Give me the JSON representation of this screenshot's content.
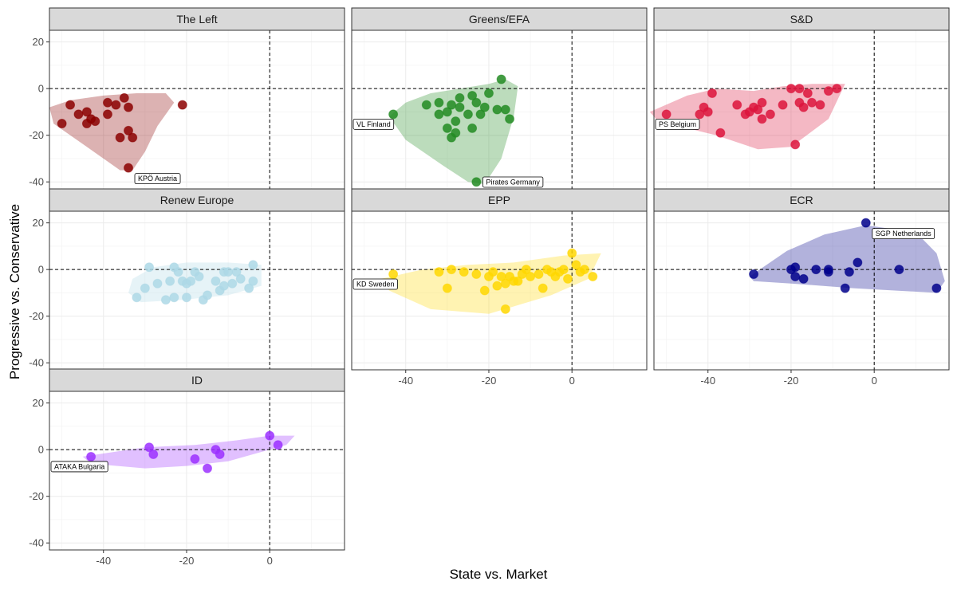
{
  "chart_data": {
    "type": "scatter",
    "title": "",
    "xlabel": "State vs. Market",
    "ylabel": "Progressive vs. Conservative",
    "xlim": [
      -53,
      18
    ],
    "ylim": [
      -43,
      25
    ],
    "x_ticks": [
      -40,
      -20,
      0
    ],
    "y_ticks": [
      -40,
      -20,
      0,
      20
    ],
    "reference_lines": {
      "x": 0,
      "y": 0
    },
    "grid": true,
    "panels": [
      {
        "name": "The Left",
        "color": "#8B0000",
        "hull": [
          [
            -53,
            -8
          ],
          [
            -48,
            -5
          ],
          [
            -40,
            -3
          ],
          [
            -32,
            -2
          ],
          [
            -25,
            -2
          ],
          [
            -23,
            -6
          ],
          [
            -27,
            -16
          ],
          [
            -30,
            -27
          ],
          [
            -33,
            -35
          ],
          [
            -36,
            -35
          ],
          [
            -44,
            -25
          ],
          [
            -52,
            -15
          ]
        ],
        "points": [
          [
            -50,
            -15
          ],
          [
            -48,
            -7
          ],
          [
            -46,
            -11
          ],
          [
            -44,
            -10
          ],
          [
            -44,
            -15
          ],
          [
            -43,
            -13
          ],
          [
            -42,
            -14
          ],
          [
            -39,
            -6
          ],
          [
            -39,
            -11
          ],
          [
            -37,
            -7
          ],
          [
            -36,
            -21
          ],
          [
            -35,
            -4
          ],
          [
            -34,
            -8
          ],
          [
            -34,
            -18
          ],
          [
            -33,
            -21
          ],
          [
            -34,
            -34
          ],
          [
            -21,
            -7
          ]
        ],
        "labels": [
          {
            "text": "KPÖ Austria",
            "x": -34,
            "y": -34,
            "anchor": "right"
          }
        ]
      },
      {
        "name": "Greens/EFA",
        "color": "#228B22",
        "hull": [
          [
            -44,
            -12
          ],
          [
            -40,
            -6
          ],
          [
            -34,
            -2
          ],
          [
            -27,
            0
          ],
          [
            -20,
            2
          ],
          [
            -16,
            4
          ],
          [
            -13,
            1
          ],
          [
            -14,
            -12
          ],
          [
            -17,
            -30
          ],
          [
            -21,
            -41
          ],
          [
            -25,
            -40
          ],
          [
            -31,
            -33
          ],
          [
            -40,
            -22
          ]
        ],
        "points": [
          [
            -43,
            -11
          ],
          [
            -35,
            -7
          ],
          [
            -32,
            -6
          ],
          [
            -32,
            -11
          ],
          [
            -30,
            -10
          ],
          [
            -29,
            -7
          ],
          [
            -28,
            -14
          ],
          [
            -28,
            -19
          ],
          [
            -27,
            -8
          ],
          [
            -25,
            -11
          ],
          [
            -24,
            -17
          ],
          [
            -23,
            -6
          ],
          [
            -23,
            -40
          ],
          [
            -21,
            -8
          ],
          [
            -20,
            -2
          ],
          [
            -18,
            -9
          ],
          [
            -17,
            4
          ],
          [
            -16,
            -9
          ],
          [
            -15,
            -13
          ],
          [
            -27,
            -4
          ],
          [
            -24,
            -3
          ],
          [
            -30,
            -17
          ],
          [
            -29,
            -21
          ],
          [
            -22,
            -11
          ]
        ],
        "labels": [
          {
            "text": "VL Finland",
            "x": -43,
            "y": -11,
            "anchor": "left"
          },
          {
            "text": "Pirates Germany",
            "x": -23,
            "y": -40,
            "anchor": "right"
          }
        ]
      },
      {
        "name": "S&D",
        "color": "#DC143C",
        "hull": [
          [
            -54,
            -10
          ],
          [
            -45,
            -3
          ],
          [
            -38,
            0
          ],
          [
            -29,
            -1
          ],
          [
            -22,
            1
          ],
          [
            -15,
            2
          ],
          [
            -7,
            2
          ],
          [
            -11,
            -13
          ],
          [
            -20,
            -25
          ],
          [
            -28,
            -26
          ],
          [
            -38,
            -20
          ],
          [
            -52,
            -14
          ]
        ],
        "points": [
          [
            -50,
            -11
          ],
          [
            -45,
            -15
          ],
          [
            -42,
            -11
          ],
          [
            -41,
            -8
          ],
          [
            -40,
            -10
          ],
          [
            -39,
            -2
          ],
          [
            -37,
            -19
          ],
          [
            -33,
            -7
          ],
          [
            -31,
            -11
          ],
          [
            -30,
            -10
          ],
          [
            -29,
            -8
          ],
          [
            -27,
            -6
          ],
          [
            -27,
            -13
          ],
          [
            -25,
            -11
          ],
          [
            -22,
            -7
          ],
          [
            -20,
            0
          ],
          [
            -19,
            -24
          ],
          [
            -18,
            0
          ],
          [
            -18,
            -6
          ],
          [
            -16,
            -2
          ],
          [
            -15,
            -6
          ],
          [
            -13,
            -7
          ],
          [
            -11,
            -1
          ],
          [
            -9,
            0
          ],
          [
            -17,
            -8
          ],
          [
            -28,
            -9
          ]
        ],
        "labels": [
          {
            "text": "PS Belgium",
            "x": -50,
            "y": -11,
            "anchor": "left"
          }
        ]
      },
      {
        "name": "Renew Europe",
        "color": "#ADD8E6",
        "hull": [
          [
            -33,
            -4
          ],
          [
            -28,
            1
          ],
          [
            -20,
            3
          ],
          [
            -10,
            3
          ],
          [
            -2,
            2
          ],
          [
            -2,
            -7
          ],
          [
            -10,
            -11
          ],
          [
            -21,
            -13
          ],
          [
            -31,
            -14
          ],
          [
            -34,
            -10
          ]
        ],
        "points": [
          [
            -32,
            -12
          ],
          [
            -30,
            -8
          ],
          [
            -29,
            1
          ],
          [
            -27,
            -6
          ],
          [
            -25,
            -13
          ],
          [
            -24,
            -5
          ],
          [
            -23,
            -12
          ],
          [
            -23,
            1
          ],
          [
            -22,
            -1
          ],
          [
            -21,
            -5
          ],
          [
            -20,
            -12
          ],
          [
            -20,
            -6
          ],
          [
            -19,
            -5
          ],
          [
            -18,
            -1
          ],
          [
            -17,
            -3
          ],
          [
            -16,
            -13
          ],
          [
            -15,
            -11
          ],
          [
            -13,
            -5
          ],
          [
            -12,
            -9
          ],
          [
            -11,
            -1
          ],
          [
            -11,
            -7
          ],
          [
            -10,
            -1
          ],
          [
            -9,
            -6
          ],
          [
            -8,
            -1
          ],
          [
            -7,
            -4
          ],
          [
            -5,
            -8
          ],
          [
            -4,
            2
          ],
          [
            -4,
            -5
          ]
        ],
        "labels": []
      },
      {
        "name": "EPP",
        "color": "#FFD700",
        "hull": [
          [
            -46,
            -4
          ],
          [
            -36,
            0
          ],
          [
            -25,
            2
          ],
          [
            -14,
            3
          ],
          [
            -2,
            6
          ],
          [
            7,
            7
          ],
          [
            4,
            -4
          ],
          [
            -5,
            -11
          ],
          [
            -20,
            -19
          ],
          [
            -34,
            -17
          ],
          [
            -44,
            -9
          ]
        ],
        "points": [
          [
            -43,
            -2
          ],
          [
            -32,
            -1
          ],
          [
            -29,
            0
          ],
          [
            -26,
            -1
          ],
          [
            -23,
            -2
          ],
          [
            -20,
            -3
          ],
          [
            -18,
            -7
          ],
          [
            -17,
            -3
          ],
          [
            -16,
            -6
          ],
          [
            -15,
            -3
          ],
          [
            -14,
            -5
          ],
          [
            -13,
            -5
          ],
          [
            -12,
            -2
          ],
          [
            -11,
            0
          ],
          [
            -10,
            -3
          ],
          [
            -8,
            -2
          ],
          [
            -7,
            -8
          ],
          [
            -6,
            0
          ],
          [
            -5,
            -1
          ],
          [
            -4,
            -3
          ],
          [
            -3,
            -1
          ],
          [
            -2,
            0
          ],
          [
            -1,
            -4
          ],
          [
            0,
            7
          ],
          [
            1,
            2
          ],
          [
            2,
            -1
          ],
          [
            3,
            0
          ],
          [
            5,
            -3
          ],
          [
            -30,
            -8
          ],
          [
            -16,
            -17
          ],
          [
            -19,
            -1
          ],
          [
            -21,
            -9
          ]
        ],
        "labels": [
          {
            "text": "KD Sweden",
            "x": -43,
            "y": -2,
            "anchor": "left"
          }
        ]
      },
      {
        "name": "ECR",
        "color": "#00008B",
        "hull": [
          [
            -30,
            -3
          ],
          [
            -21,
            8
          ],
          [
            -12,
            15
          ],
          [
            -2,
            19
          ],
          [
            10,
            16
          ],
          [
            15,
            7
          ],
          [
            17,
            -5
          ],
          [
            15,
            -10
          ],
          [
            -5,
            -8
          ],
          [
            -20,
            -6
          ],
          [
            -29,
            -5
          ]
        ],
        "points": [
          [
            -29,
            -2
          ],
          [
            -20,
            0
          ],
          [
            -19,
            -3
          ],
          [
            -19,
            1
          ],
          [
            -17,
            -4
          ],
          [
            -14,
            0
          ],
          [
            -11,
            -1
          ],
          [
            -11,
            0
          ],
          [
            -7,
            -8
          ],
          [
            -6,
            -1
          ],
          [
            -4,
            3
          ],
          [
            -2,
            20
          ],
          [
            6,
            0
          ],
          [
            15,
            -8
          ]
        ],
        "labels": [
          {
            "text": "SGP Netherlands",
            "x": -2,
            "y": 20,
            "anchor": "right"
          }
        ]
      },
      {
        "name": "ID",
        "color": "#9B30FF",
        "hull": [
          [
            -45,
            -3
          ],
          [
            -30,
            1
          ],
          [
            -18,
            2
          ],
          [
            -8,
            4
          ],
          [
            0,
            6
          ],
          [
            6,
            6
          ],
          [
            4,
            2
          ],
          [
            -10,
            -5
          ],
          [
            -20,
            -7
          ],
          [
            -30,
            -8
          ],
          [
            -43,
            -6
          ]
        ],
        "points": [
          [
            -43,
            -3
          ],
          [
            -29,
            1
          ],
          [
            -28,
            -2
          ],
          [
            -18,
            -4
          ],
          [
            -15,
            -8
          ],
          [
            -13,
            0
          ],
          [
            -12,
            -2
          ],
          [
            0,
            6
          ],
          [
            2,
            2
          ]
        ],
        "labels": [
          {
            "text": "ATAKA Bulgaria",
            "x": -43,
            "y": -3,
            "anchor": "left"
          }
        ]
      }
    ]
  }
}
